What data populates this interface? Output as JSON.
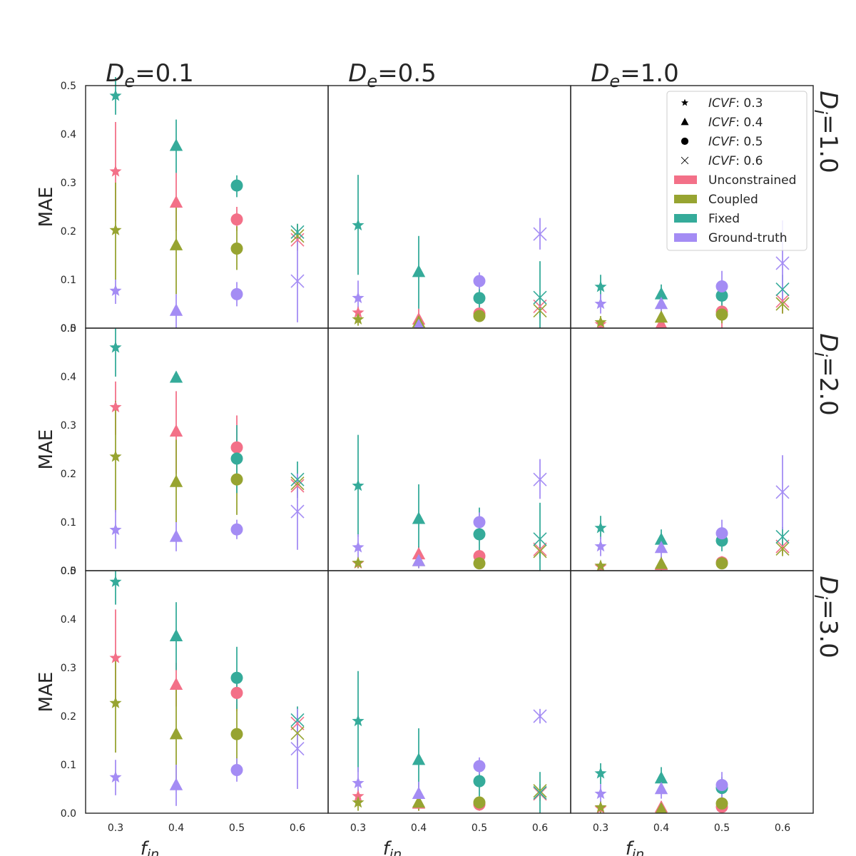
{
  "chart_data": {
    "type": "scatter",
    "figure_grid": "3x3 facets, rows D_i, columns D_e",
    "column_titles": [
      "D_e=0.1",
      "D_e=0.5",
      "D_e=1.0"
    ],
    "row_titles": [
      "D_i=1.0",
      "D_i=2.0",
      "D_i=3.0"
    ],
    "xlabel": "f_in",
    "ylabel": "MAE",
    "x_categories": [
      "0.3",
      "0.4",
      "0.5",
      "0.6"
    ],
    "y_ticks": [
      "0.0",
      "0.1",
      "0.2",
      "0.3",
      "0.4",
      "0.5"
    ],
    "ylim": [
      0.0,
      0.5
    ],
    "legend": {
      "position": "top-right of top-right panel",
      "marker_entries": [
        {
          "marker": "star",
          "label": "ICVF: 0.3"
        },
        {
          "marker": "triangle",
          "label": "ICVF: 0.4"
        },
        {
          "marker": "circle",
          "label": "ICVF: 0.5"
        },
        {
          "marker": "x",
          "label": "ICVF: 0.6"
        }
      ],
      "color_entries": [
        {
          "name": "Unconstrained",
          "color": "#f37088"
        },
        {
          "name": "Coupled",
          "color": "#97a431"
        },
        {
          "name": "Fixed",
          "color": "#35ab9a"
        },
        {
          "name": "Ground-truth",
          "color": "#a48cf4"
        }
      ]
    },
    "series_order": [
      "Unconstrained",
      "Coupled",
      "Fixed",
      "Ground-truth"
    ],
    "note": "Each panel: points[x_index] = per-series [mean, error_low, error_high] or null",
    "panels": [
      {
        "row": 0,
        "col": 0,
        "points": [
          {
            "x": "0.3",
            "Unconstrained": [
              0.323,
              0.22,
              0.425
            ],
            "Coupled": [
              0.202,
              0.1,
              0.3
            ],
            "Fixed": [
              0.479,
              0.44,
              0.52
            ],
            "Ground-truth": [
              0.077,
              0.05,
              0.1
            ]
          },
          {
            "x": "0.4",
            "Unconstrained": [
              0.259,
              0.2,
              0.32
            ],
            "Coupled": [
              0.171,
              0.07,
              0.27
            ],
            "Fixed": [
              0.376,
              0.32,
              0.43
            ],
            "Ground-truth": [
              0.036,
              0.0,
              0.07
            ]
          },
          {
            "x": "0.5",
            "Unconstrained": [
              0.224,
              0.2,
              0.25
            ],
            "Coupled": [
              0.164,
              0.12,
              0.21
            ],
            "Fixed": [
              0.294,
              0.27,
              0.315
            ],
            "Ground-truth": [
              0.07,
              0.045,
              0.095
            ]
          },
          {
            "x": "0.6",
            "Unconstrained": [
              0.182,
              0.16,
              0.2
            ],
            "Coupled": [
              0.19,
              0.16,
              0.215
            ],
            "Fixed": [
              0.198,
              0.18,
              0.215
            ],
            "Ground-truth": [
              0.097,
              0.012,
              0.185
            ]
          }
        ]
      },
      {
        "row": 0,
        "col": 1,
        "points": [
          {
            "x": "0.3",
            "Unconstrained": [
              0.032,
              0.02,
              0.045
            ],
            "Coupled": [
              0.018,
              0.005,
              0.03
            ],
            "Fixed": [
              0.212,
              0.11,
              0.316
            ],
            "Ground-truth": [
              0.062,
              0.03,
              0.098
            ]
          },
          {
            "x": "0.4",
            "Unconstrained": [
              0.018,
              0.0,
              0.04
            ],
            "Coupled": [
              0.012,
              0.0,
              0.03
            ],
            "Fixed": [
              0.116,
              0.04,
              0.19
            ],
            "Ground-truth": [
              0.005,
              0.0,
              0.02
            ]
          },
          {
            "x": "0.5",
            "Unconstrained": [
              0.03,
              0.02,
              0.04
            ],
            "Coupled": [
              0.025,
              0.015,
              0.035
            ],
            "Fixed": [
              0.062,
              0.04,
              0.085
            ],
            "Ground-truth": [
              0.097,
              0.08,
              0.115
            ]
          },
          {
            "x": "0.6",
            "Unconstrained": [
              0.045,
              0.03,
              0.06
            ],
            "Coupled": [
              0.036,
              0.02,
              0.05
            ],
            "Fixed": [
              0.063,
              0.0,
              0.138
            ],
            "Ground-truth": [
              0.194,
              0.162,
              0.227
            ]
          }
        ]
      },
      {
        "row": 0,
        "col": 2,
        "points": [
          {
            "x": "0.3",
            "Unconstrained": [
              0.008,
              0.0,
              0.02
            ],
            "Coupled": [
              0.012,
              0.0,
              0.025
            ],
            "Fixed": [
              0.085,
              0.06,
              0.11
            ],
            "Ground-truth": [
              0.05,
              0.03,
              0.07
            ]
          },
          {
            "x": "0.4",
            "Unconstrained": [
              0.008,
              0.0,
              0.02
            ],
            "Coupled": [
              0.022,
              0.005,
              0.04
            ],
            "Fixed": [
              0.07,
              0.05,
              0.09
            ],
            "Ground-truth": [
              0.05,
              0.03,
              0.07
            ]
          },
          {
            "x": "0.5",
            "Unconstrained": [
              0.034,
              0.0,
              0.07
            ],
            "Coupled": [
              0.028,
              0.01,
              0.045
            ],
            "Fixed": [
              0.067,
              0.04,
              0.095
            ],
            "Ground-truth": [
              0.086,
              0.055,
              0.118
            ]
          },
          {
            "x": "0.6",
            "Unconstrained": [
              0.056,
              0.03,
              0.08
            ],
            "Coupled": [
              0.05,
              0.03,
              0.07
            ],
            "Fixed": [
              0.08,
              0.05,
              0.11
            ],
            "Ground-truth": [
              0.134,
              0.05,
              0.222
            ]
          }
        ]
      },
      {
        "row": 1,
        "col": 0,
        "points": [
          {
            "x": "0.3",
            "Unconstrained": [
              0.337,
              0.28,
              0.39
            ],
            "Coupled": [
              0.235,
              0.12,
              0.35
            ],
            "Fixed": [
              0.46,
              0.4,
              0.5
            ],
            "Ground-truth": [
              0.084,
              0.045,
              0.125
            ]
          },
          {
            "x": "0.4",
            "Unconstrained": [
              0.287,
              0.2,
              0.37
            ],
            "Coupled": [
              0.183,
              0.1,
              0.27
            ],
            "Fixed": [
              0.398,
              0.39,
              0.41
            ],
            "Ground-truth": [
              0.07,
              0.04,
              0.1
            ]
          },
          {
            "x": "0.5",
            "Unconstrained": [
              0.254,
              0.19,
              0.32
            ],
            "Coupled": [
              0.188,
              0.115,
              0.26
            ],
            "Fixed": [
              0.231,
              0.16,
              0.3
            ],
            "Ground-truth": [
              0.085,
              0.065,
              0.105
            ]
          },
          {
            "x": "0.6",
            "Unconstrained": [
              0.175,
              0.155,
              0.195
            ],
            "Coupled": [
              0.18,
              0.16,
              0.2
            ],
            "Fixed": [
              0.188,
              0.15,
              0.225
            ],
            "Ground-truth": [
              0.122,
              0.043,
              0.2
            ]
          }
        ]
      },
      {
        "row": 1,
        "col": 1,
        "points": [
          {
            "x": "0.3",
            "Unconstrained": [
              0.015,
              0.005,
              0.025
            ],
            "Coupled": [
              0.016,
              0.005,
              0.027
            ],
            "Fixed": [
              0.175,
              0.07,
              0.28
            ],
            "Ground-truth": [
              0.048,
              0.02,
              0.075
            ]
          },
          {
            "x": "0.4",
            "Unconstrained": [
              0.034,
              0.02,
              0.05
            ],
            "Coupled": [
              0.02,
              0.005,
              0.035
            ],
            "Fixed": [
              0.107,
              0.04,
              0.178
            ],
            "Ground-truth": [
              0.02,
              0.005,
              0.035
            ]
          },
          {
            "x": "0.5",
            "Unconstrained": [
              0.03,
              0.02,
              0.04
            ],
            "Coupled": [
              0.015,
              0.005,
              0.025
            ],
            "Fixed": [
              0.075,
              0.02,
              0.13
            ],
            "Ground-truth": [
              0.1,
              0.08,
              0.12
            ]
          },
          {
            "x": "0.6",
            "Unconstrained": [
              0.044,
              0.03,
              0.06
            ],
            "Coupled": [
              0.04,
              0.025,
              0.055
            ],
            "Fixed": [
              0.065,
              0.0,
              0.14
            ],
            "Ground-truth": [
              0.188,
              0.148,
              0.23
            ]
          }
        ]
      },
      {
        "row": 1,
        "col": 2,
        "points": [
          {
            "x": "0.3",
            "Unconstrained": [
              0.008,
              0.0,
              0.02
            ],
            "Coupled": [
              0.01,
              0.0,
              0.02
            ],
            "Fixed": [
              0.088,
              0.065,
              0.113
            ],
            "Ground-truth": [
              0.05,
              0.03,
              0.07
            ]
          },
          {
            "x": "0.4",
            "Unconstrained": [
              0.012,
              0.0,
              0.025
            ],
            "Coupled": [
              0.014,
              0.0,
              0.03
            ],
            "Fixed": [
              0.064,
              0.045,
              0.085
            ],
            "Ground-truth": [
              0.047,
              0.025,
              0.07
            ]
          },
          {
            "x": "0.5",
            "Unconstrained": [
              0.017,
              0.005,
              0.03
            ],
            "Coupled": [
              0.015,
              0.005,
              0.025
            ],
            "Fixed": [
              0.062,
              0.04,
              0.085
            ],
            "Ground-truth": [
              0.077,
              0.05,
              0.105
            ]
          },
          {
            "x": "0.6",
            "Unconstrained": [
              0.05,
              0.035,
              0.065
            ],
            "Coupled": [
              0.045,
              0.03,
              0.06
            ],
            "Fixed": [
              0.07,
              0.05,
              0.09
            ],
            "Ground-truth": [
              0.162,
              0.085,
              0.238
            ]
          }
        ]
      },
      {
        "row": 2,
        "col": 0,
        "points": [
          {
            "x": "0.3",
            "Unconstrained": [
              0.32,
              0.22,
              0.42
            ],
            "Coupled": [
              0.227,
              0.125,
              0.33
            ],
            "Fixed": [
              0.477,
              0.43,
              0.5
            ],
            "Ground-truth": [
              0.074,
              0.037,
              0.11
            ]
          },
          {
            "x": "0.4",
            "Unconstrained": [
              0.265,
              0.22,
              0.31
            ],
            "Coupled": [
              0.163,
              0.06,
              0.265
            ],
            "Fixed": [
              0.365,
              0.295,
              0.435
            ],
            "Ground-truth": [
              0.058,
              0.015,
              0.1
            ]
          },
          {
            "x": "0.5",
            "Unconstrained": [
              0.248,
              0.21,
              0.285
            ],
            "Coupled": [
              0.163,
              0.1,
              0.225
            ],
            "Fixed": [
              0.279,
              0.215,
              0.343
            ],
            "Ground-truth": [
              0.089,
              0.065,
              0.113
            ]
          },
          {
            "x": "0.6",
            "Unconstrained": [
              0.185,
              0.165,
              0.205
            ],
            "Coupled": [
              0.165,
              0.14,
              0.19
            ],
            "Fixed": [
              0.192,
              0.165,
              0.22
            ],
            "Ground-truth": [
              0.133,
              0.05,
              0.215
            ]
          }
        ]
      },
      {
        "row": 2,
        "col": 1,
        "points": [
          {
            "x": "0.3",
            "Unconstrained": [
              0.035,
              0.02,
              0.05
            ],
            "Coupled": [
              0.022,
              0.005,
              0.04
            ],
            "Fixed": [
              0.19,
              0.085,
              0.293
            ],
            "Ground-truth": [
              0.062,
              0.03,
              0.095
            ]
          },
          {
            "x": "0.4",
            "Unconstrained": [
              0.02,
              0.005,
              0.035
            ],
            "Coupled": [
              0.022,
              0.005,
              0.04
            ],
            "Fixed": [
              0.11,
              0.045,
              0.175
            ],
            "Ground-truth": [
              0.04,
              0.015,
              0.065
            ]
          },
          {
            "x": "0.5",
            "Unconstrained": [
              0.018,
              0.005,
              0.03
            ],
            "Coupled": [
              0.022,
              0.01,
              0.035
            ],
            "Fixed": [
              0.066,
              0.035,
              0.1
            ],
            "Ground-truth": [
              0.097,
              0.08,
              0.115
            ]
          },
          {
            "x": "0.6",
            "Unconstrained": [
              0.04,
              0.025,
              0.055
            ],
            "Coupled": [
              0.046,
              0.03,
              0.06
            ],
            "Fixed": [
              0.042,
              0.0,
              0.085
            ],
            "Ground-truth": [
              0.2,
              0.185,
              0.215
            ]
          }
        ]
      },
      {
        "row": 2,
        "col": 2,
        "points": [
          {
            "x": "0.3",
            "Unconstrained": [
              0.01,
              0.0,
              0.02
            ],
            "Coupled": [
              0.012,
              0.0,
              0.025
            ],
            "Fixed": [
              0.082,
              0.06,
              0.103
            ],
            "Ground-truth": [
              0.04,
              0.02,
              0.06
            ]
          },
          {
            "x": "0.4",
            "Unconstrained": [
              0.012,
              0.0,
              0.025
            ],
            "Coupled": [
              0.008,
              0.0,
              0.02
            ],
            "Fixed": [
              0.072,
              0.05,
              0.095
            ],
            "Ground-truth": [
              0.05,
              0.03,
              0.07
            ]
          },
          {
            "x": "0.5",
            "Unconstrained": [
              0.013,
              0.0,
              0.025
            ],
            "Coupled": [
              0.02,
              0.005,
              0.035
            ],
            "Fixed": [
              0.052,
              0.03,
              0.075
            ],
            "Ground-truth": [
              0.058,
              0.03,
              0.085
            ]
          },
          {
            "x": "0.6"
          }
        ]
      }
    ]
  }
}
